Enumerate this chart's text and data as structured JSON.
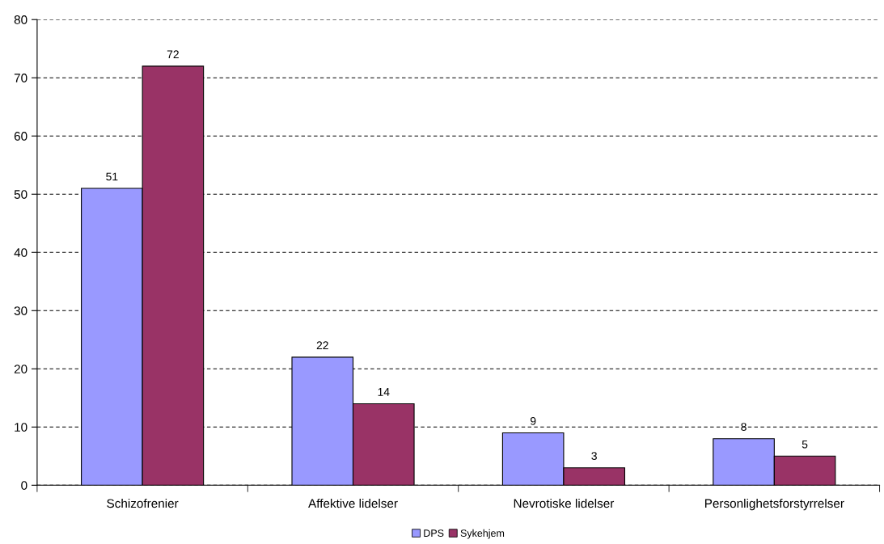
{
  "chart_data": {
    "type": "bar",
    "categories": [
      "Schizofrenier",
      "Affektive lidelser",
      "Nevrotiske lidelser",
      "Personlighetsforstyrrelser"
    ],
    "series": [
      {
        "name": "DPS",
        "color": "#9999ff",
        "values": [
          51,
          22,
          9,
          8
        ]
      },
      {
        "name": "Sykehjem",
        "color": "#993366",
        "values": [
          72,
          14,
          3,
          5
        ]
      }
    ],
    "ylim": [
      0,
      80
    ],
    "yticks": [
      0,
      10,
      20,
      30,
      40,
      50,
      60,
      70,
      80
    ],
    "grid": "y",
    "data_labels": true,
    "legend": "bottom"
  }
}
